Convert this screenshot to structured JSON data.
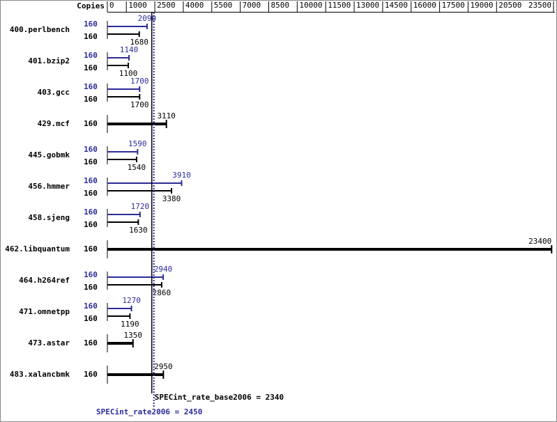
{
  "chart_data": {
    "type": "bar",
    "orientation": "horizontal",
    "copies_header": "Copies",
    "categories": [
      "400.perlbench",
      "401.bzip2",
      "403.gcc",
      "429.mcf",
      "445.gobmk",
      "456.hmmer",
      "458.sjeng",
      "462.libquantum",
      "464.h264ref",
      "471.omnetpp",
      "473.astar",
      "483.xalancbmk"
    ],
    "series": [
      {
        "color": "#2b2b99",
        "copies": [
          160,
          160,
          160,
          null,
          160,
          160,
          160,
          null,
          160,
          160,
          null,
          null
        ],
        "values": [
          2090,
          1140,
          1700,
          null,
          1590,
          3910,
          1720,
          null,
          2940,
          1270,
          null,
          null
        ]
      },
      {
        "color": "#000000",
        "copies": [
          160,
          160,
          160,
          160,
          160,
          160,
          160,
          160,
          160,
          160,
          160,
          160
        ],
        "values": [
          1680,
          1100,
          1700,
          3110,
          1540,
          3380,
          1630,
          23400,
          2860,
          1190,
          1350,
          2950
        ]
      }
    ],
    "xlim": [
      0,
      23500
    ],
    "xticks": [
      0,
      1000,
      2500,
      4000,
      5500,
      7000,
      8500,
      10000,
      11500,
      13000,
      14500,
      16000,
      17500,
      19000,
      20500,
      23500
    ],
    "references": [
      {
        "label": "SPECint_rate_base2006 = 2340",
        "value": 2340,
        "color": "#000000",
        "dashed": false
      },
      {
        "label": "SPECint_rate2006 = 2450",
        "value": 2450,
        "color": "#2b2b99",
        "dashed": true
      }
    ]
  }
}
